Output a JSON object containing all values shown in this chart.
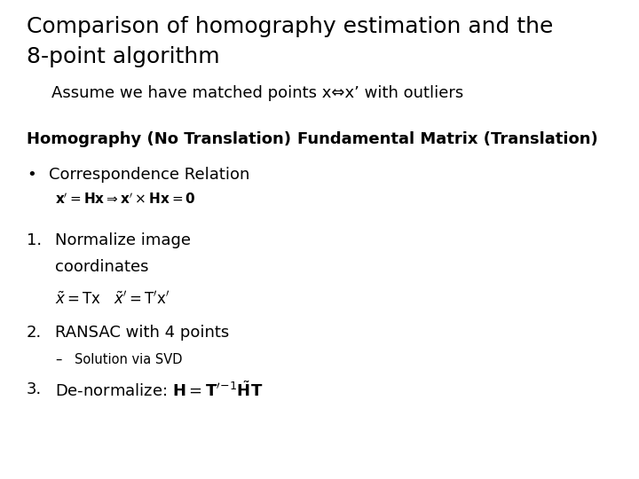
{
  "title_line1": "Comparison of homography estimation and the",
  "title_line2": "8-point algorithm",
  "subtitle": "Assume we have matched points x⇔x’ with outliers",
  "col1_header": "Homography (No Translation)",
  "col2_header": "Fundamental Matrix (Translation)",
  "background_color": "#ffffff",
  "title_fontsize": 18,
  "subtitle_fontsize": 13,
  "header_fontsize": 13,
  "body_fontsize": 13,
  "small_fontsize": 10.5
}
